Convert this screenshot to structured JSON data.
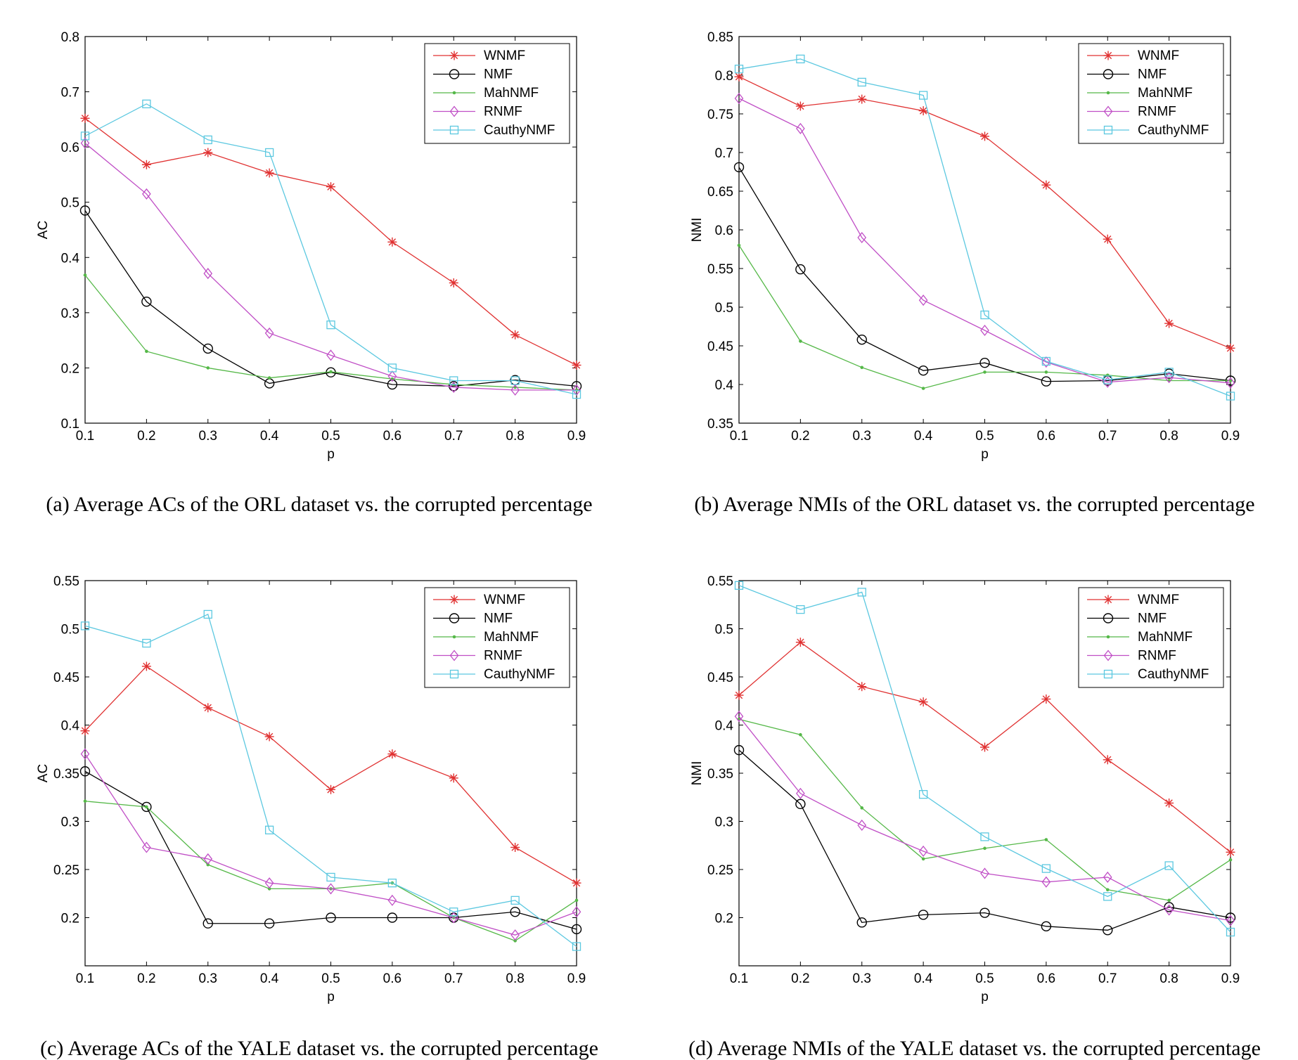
{
  "series_styles": {
    "WNMF": {
      "color": "#e03131",
      "marker": "star"
    },
    "NMF": {
      "color": "#000000",
      "marker": "circle"
    },
    "MahNMF": {
      "color": "#55b848",
      "marker": "dot"
    },
    "RNMF": {
      "color": "#c04fc6",
      "marker": "diamond"
    },
    "CauthyNMF": {
      "color": "#5cc8e0",
      "marker": "square"
    }
  },
  "chart_data": [
    {
      "type": "line",
      "caption": "(a)  Average ACs of the ORL dataset vs. the corrupted percentage",
      "xlabel": "p",
      "ylabel": "AC",
      "x": [
        0.1,
        0.2,
        0.3,
        0.4,
        0.5,
        0.6,
        0.7,
        0.8,
        0.9
      ],
      "xticks": [
        "0.1",
        "0.2",
        "0.3",
        "0.4",
        "0.5",
        "0.6",
        "0.7",
        "0.8",
        "0.9"
      ],
      "ylim": [
        0.1,
        0.8
      ],
      "yticks": [
        "0.1",
        "0.2",
        "0.3",
        "0.4",
        "0.5",
        "0.6",
        "0.7",
        "0.8"
      ],
      "legend": "top-right",
      "series": [
        {
          "name": "WNMF",
          "values": [
            0.652,
            0.568,
            0.59,
            0.553,
            0.528,
            0.428,
            0.354,
            0.26,
            0.205
          ]
        },
        {
          "name": "NMF",
          "values": [
            0.485,
            0.32,
            0.235,
            0.172,
            0.192,
            0.17,
            0.167,
            0.178,
            0.167
          ]
        },
        {
          "name": "MahNMF",
          "values": [
            0.368,
            0.23,
            0.2,
            0.182,
            0.193,
            0.18,
            0.17,
            0.165,
            0.16
          ]
        },
        {
          "name": "RNMF",
          "values": [
            0.607,
            0.515,
            0.371,
            0.263,
            0.223,
            0.185,
            0.165,
            0.16,
            0.16
          ]
        },
        {
          "name": "CauthyNMF",
          "values": [
            0.62,
            0.678,
            0.613,
            0.59,
            0.278,
            0.2,
            0.177,
            0.177,
            0.152
          ]
        }
      ]
    },
    {
      "type": "line",
      "caption": "(b)  Average NMIs of the ORL dataset vs. the corrupted percentage",
      "xlabel": "p",
      "ylabel": "NMI",
      "x": [
        0.1,
        0.2,
        0.3,
        0.4,
        0.5,
        0.6,
        0.7,
        0.8,
        0.9
      ],
      "xticks": [
        "0.1",
        "0.2",
        "0.3",
        "0.4",
        "0.5",
        "0.6",
        "0.7",
        "0.8",
        "0.9"
      ],
      "ylim": [
        0.35,
        0.85
      ],
      "yticks": [
        "0.35",
        "0.4",
        "0.45",
        "0.5",
        "0.55",
        "0.6",
        "0.65",
        "0.7",
        "0.75",
        "0.8",
        "0.85"
      ],
      "legend": "top-right",
      "series": [
        {
          "name": "WNMF",
          "values": [
            0.798,
            0.76,
            0.769,
            0.754,
            0.721,
            0.658,
            0.588,
            0.479,
            0.447
          ]
        },
        {
          "name": "NMF",
          "values": [
            0.681,
            0.549,
            0.458,
            0.418,
            0.428,
            0.404,
            0.405,
            0.414,
            0.405
          ]
        },
        {
          "name": "MahNMF",
          "values": [
            0.58,
            0.456,
            0.422,
            0.395,
            0.416,
            0.416,
            0.412,
            0.405,
            0.405
          ]
        },
        {
          "name": "RNMF",
          "values": [
            0.77,
            0.731,
            0.59,
            0.509,
            0.47,
            0.429,
            0.403,
            0.409,
            0.402
          ]
        },
        {
          "name": "CauthyNMF",
          "values": [
            0.808,
            0.821,
            0.791,
            0.774,
            0.49,
            0.43,
            0.406,
            0.416,
            0.385
          ]
        }
      ]
    },
    {
      "type": "line",
      "caption": "(c)  Average ACs of the YALE dataset vs. the corrupted percentage",
      "xlabel": "p",
      "ylabel": "AC",
      "x": [
        0.1,
        0.2,
        0.3,
        0.4,
        0.5,
        0.6,
        0.7,
        0.8,
        0.9
      ],
      "xticks": [
        "0.1",
        "0.2",
        "0.3",
        "0.4",
        "0.5",
        "0.6",
        "0.7",
        "0.8",
        "0.9"
      ],
      "ylim": [
        0.15,
        0.55
      ],
      "yticks": [
        "0.2",
        "0.25",
        "0.3",
        "0.35",
        "0.4",
        "0.45",
        "0.5",
        "0.55"
      ],
      "legend": "top-right",
      "series": [
        {
          "name": "WNMF",
          "values": [
            0.394,
            0.461,
            0.418,
            0.388,
            0.333,
            0.37,
            0.345,
            0.273,
            0.236
          ]
        },
        {
          "name": "NMF",
          "values": [
            0.352,
            0.315,
            0.194,
            0.194,
            0.2,
            0.2,
            0.2,
            0.206,
            0.188
          ]
        },
        {
          "name": "MahNMF",
          "values": [
            0.321,
            0.315,
            0.255,
            0.23,
            0.23,
            0.236,
            0.2,
            0.176,
            0.218
          ]
        },
        {
          "name": "RNMF",
          "values": [
            0.37,
            0.273,
            0.261,
            0.236,
            0.23,
            0.218,
            0.2,
            0.182,
            0.206
          ]
        },
        {
          "name": "CauthyNMF",
          "values": [
            0.503,
            0.485,
            0.515,
            0.291,
            0.242,
            0.236,
            0.206,
            0.218,
            0.17
          ]
        }
      ]
    },
    {
      "type": "line",
      "caption": "(d)  Average NMIs of the YALE dataset vs. the corrupted percentage",
      "xlabel": "p",
      "ylabel": "NMI",
      "x": [
        0.1,
        0.2,
        0.3,
        0.4,
        0.5,
        0.6,
        0.7,
        0.8,
        0.9
      ],
      "xticks": [
        "0.1",
        "0.2",
        "0.3",
        "0.4",
        "0.5",
        "0.6",
        "0.7",
        "0.8",
        "0.9"
      ],
      "ylim": [
        0.15,
        0.55
      ],
      "yticks": [
        "0.2",
        "0.25",
        "0.3",
        "0.35",
        "0.4",
        "0.45",
        "0.5",
        "0.55"
      ],
      "legend": "top-right",
      "series": [
        {
          "name": "WNMF",
          "values": [
            0.431,
            0.486,
            0.44,
            0.424,
            0.377,
            0.427,
            0.364,
            0.319,
            0.268
          ]
        },
        {
          "name": "NMF",
          "values": [
            0.374,
            0.318,
            0.195,
            0.203,
            0.205,
            0.191,
            0.187,
            0.211,
            0.2
          ]
        },
        {
          "name": "MahNMF",
          "values": [
            0.406,
            0.39,
            0.314,
            0.261,
            0.272,
            0.281,
            0.229,
            0.218,
            0.26
          ]
        },
        {
          "name": "RNMF",
          "values": [
            0.409,
            0.329,
            0.296,
            0.269,
            0.246,
            0.237,
            0.242,
            0.208,
            0.197
          ]
        },
        {
          "name": "CauthyNMF",
          "values": [
            0.545,
            0.52,
            0.538,
            0.328,
            0.284,
            0.251,
            0.222,
            0.254,
            0.185
          ]
        }
      ]
    }
  ]
}
